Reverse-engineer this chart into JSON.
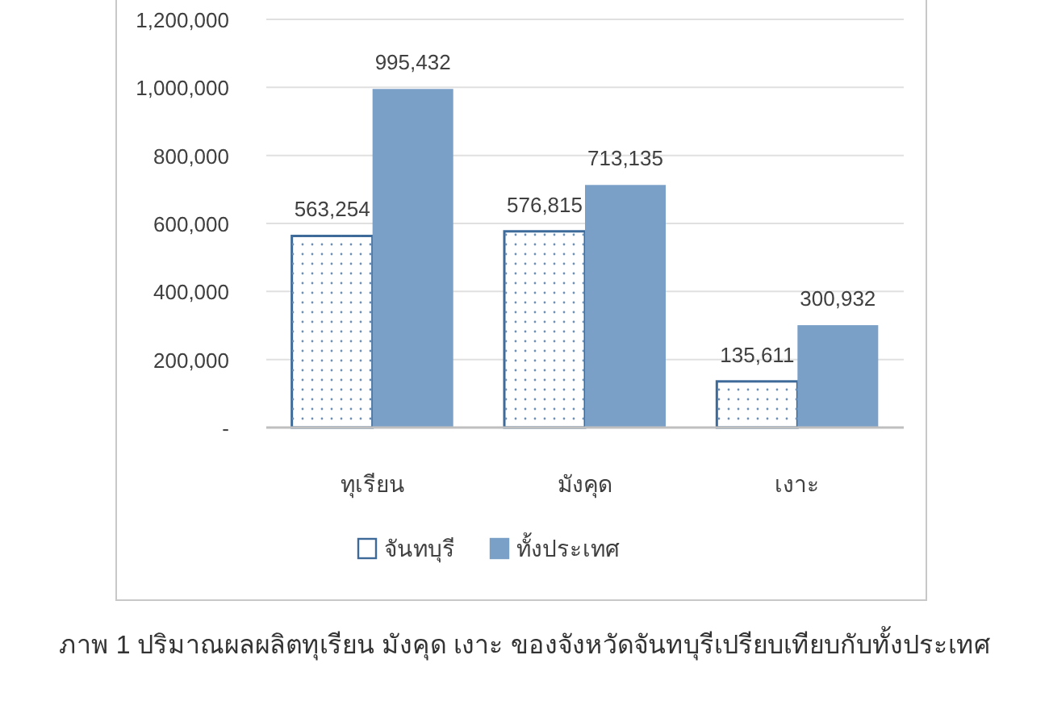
{
  "chart_data": {
    "type": "bar",
    "categories": [
      "ทุเรียน",
      "มังคุด",
      "เงาะ"
    ],
    "series": [
      {
        "name": "จันทบุรี",
        "color": "#ffffff",
        "values": [
          563254,
          576815,
          135611
        ],
        "value_labels": [
          "563,254",
          "576,815",
          "135,611"
        ]
      },
      {
        "name": "ทั้งประเทศ",
        "color": "#7aa0c8",
        "values": [
          995432,
          713135,
          300932
        ],
        "value_labels": [
          "995,432",
          "713,135",
          "300,932"
        ]
      }
    ],
    "ylim": [
      0,
      1200000
    ],
    "yticks": [
      {
        "value": 0,
        "label": "-"
      },
      {
        "value": 200000,
        "label": "200,000"
      },
      {
        "value": 400000,
        "label": "400,000"
      },
      {
        "value": 600000,
        "label": "600,000"
      },
      {
        "value": 800000,
        "label": "800,000"
      },
      {
        "value": 1000000,
        "label": "1,000,000"
      },
      {
        "value": 1200000,
        "label": "1,200,000"
      }
    ],
    "grid": "y",
    "legend": "bottom",
    "annotations": [
      "ภาพ 1 ปริมาณผลผลิตทุเรียน มังคุด เงาะ ของจังหวัดจันทบุรีเปรียบเทียบกับทั้งประเทศ"
    ]
  }
}
